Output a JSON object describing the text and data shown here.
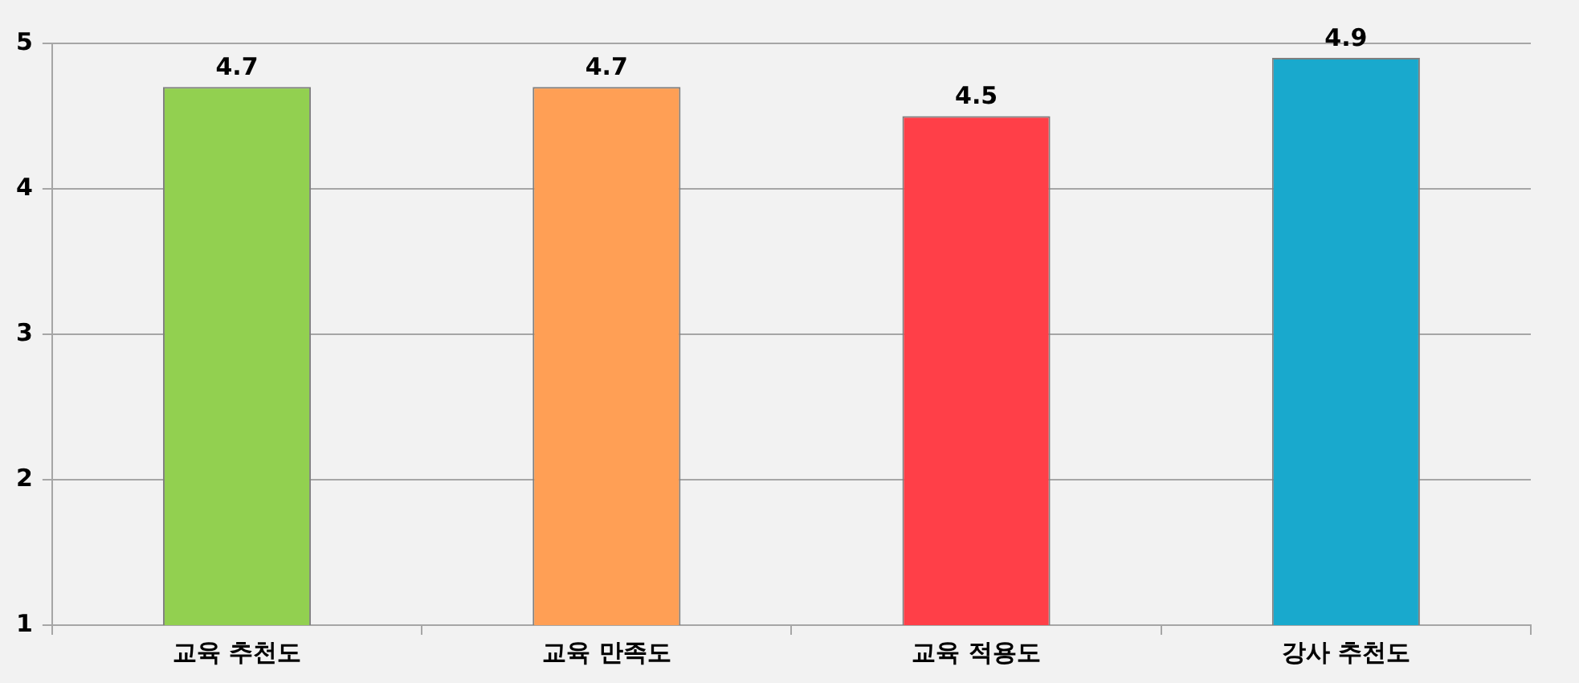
{
  "chart_data": {
    "type": "bar",
    "categories": [
      "교육 추천도",
      "교육 만족도",
      "교육 적용도",
      "강사 추천도"
    ],
    "values": [
      4.7,
      4.7,
      4.5,
      4.9
    ],
    "colors": [
      "#92d050",
      "#ff9f55",
      "#ff3f48",
      "#19a9cd"
    ],
    "ylim": [
      1,
      5
    ],
    "yticks": [
      1,
      2,
      3,
      4,
      5
    ],
    "grid": "y",
    "data_labels": true
  }
}
